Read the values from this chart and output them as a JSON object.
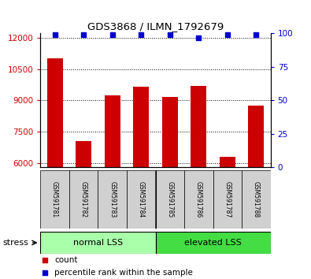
{
  "title": "GDS3868 / ILMN_1792679",
  "samples": [
    "GSM591781",
    "GSM591782",
    "GSM591783",
    "GSM591784",
    "GSM591785",
    "GSM591786",
    "GSM591787",
    "GSM591788"
  ],
  "counts": [
    11000,
    7050,
    9250,
    9650,
    9150,
    9700,
    6300,
    8750
  ],
  "percentile_ranks": [
    99,
    99,
    99,
    99,
    99,
    97,
    99,
    99
  ],
  "ylim_left": [
    5800,
    12200
  ],
  "yticks_left": [
    6000,
    7500,
    9000,
    10500,
    12000
  ],
  "ylim_right": [
    0,
    100
  ],
  "yticks_right": [
    0,
    25,
    50,
    75,
    100
  ],
  "bar_color": "#cc0000",
  "percentile_color": "#0000cc",
  "bar_width": 0.55,
  "group_labels": [
    "normal LSS",
    "elevated LSS"
  ],
  "group_colors_light": "#aaffaa",
  "group_colors_dark": "#44dd44",
  "stress_label": "stress",
  "legend_count_label": "count",
  "legend_percentile_label": "percentile rank within the sample",
  "tick_label_color_left": "#cc0000",
  "tick_label_color_right": "#0000cc",
  "sample_box_color": "#d0d0d0",
  "fig_width": 3.95,
  "fig_height": 3.54
}
